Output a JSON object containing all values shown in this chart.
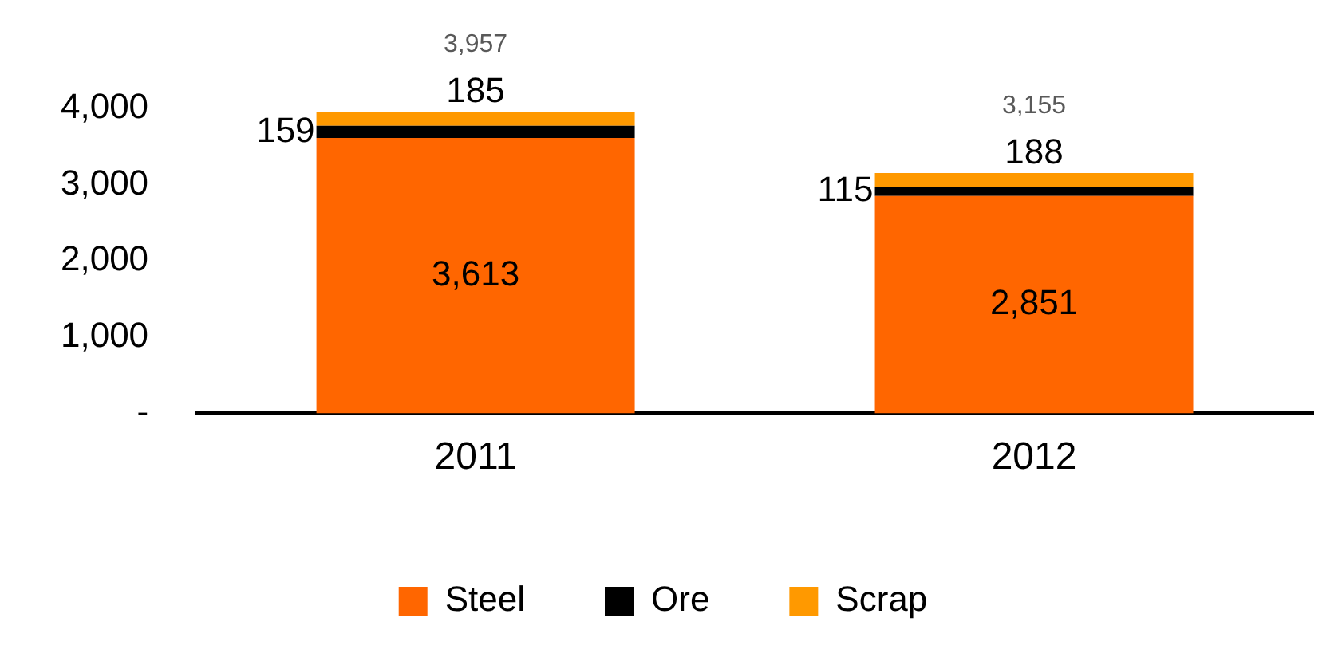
{
  "chart_data": {
    "type": "bar",
    "stacked": true,
    "categories": [
      "2011",
      "2012"
    ],
    "series": [
      {
        "name": "Steel",
        "color": "#ff6600",
        "values": [
          3613,
          2851
        ],
        "value_labels": [
          "3,613",
          "2,851"
        ]
      },
      {
        "name": "Ore",
        "color": "#000000",
        "values": [
          159,
          115
        ],
        "value_labels": [
          "159",
          "115"
        ]
      },
      {
        "name": "Scrap",
        "color": "#ff9900",
        "values": [
          185,
          188
        ],
        "value_labels": [
          "185",
          "188"
        ]
      }
    ],
    "totals": [
      "3,957",
      "3,155"
    ],
    "ylim": [
      0,
      4000
    ],
    "yticks": [
      {
        "value": 0,
        "label": "-"
      },
      {
        "value": 1000,
        "label": "1,000"
      },
      {
        "value": 2000,
        "label": "2,000"
      },
      {
        "value": 3000,
        "label": "3,000"
      },
      {
        "value": 4000,
        "label": "4,000"
      }
    ],
    "grid": false,
    "legend": "bottom"
  }
}
